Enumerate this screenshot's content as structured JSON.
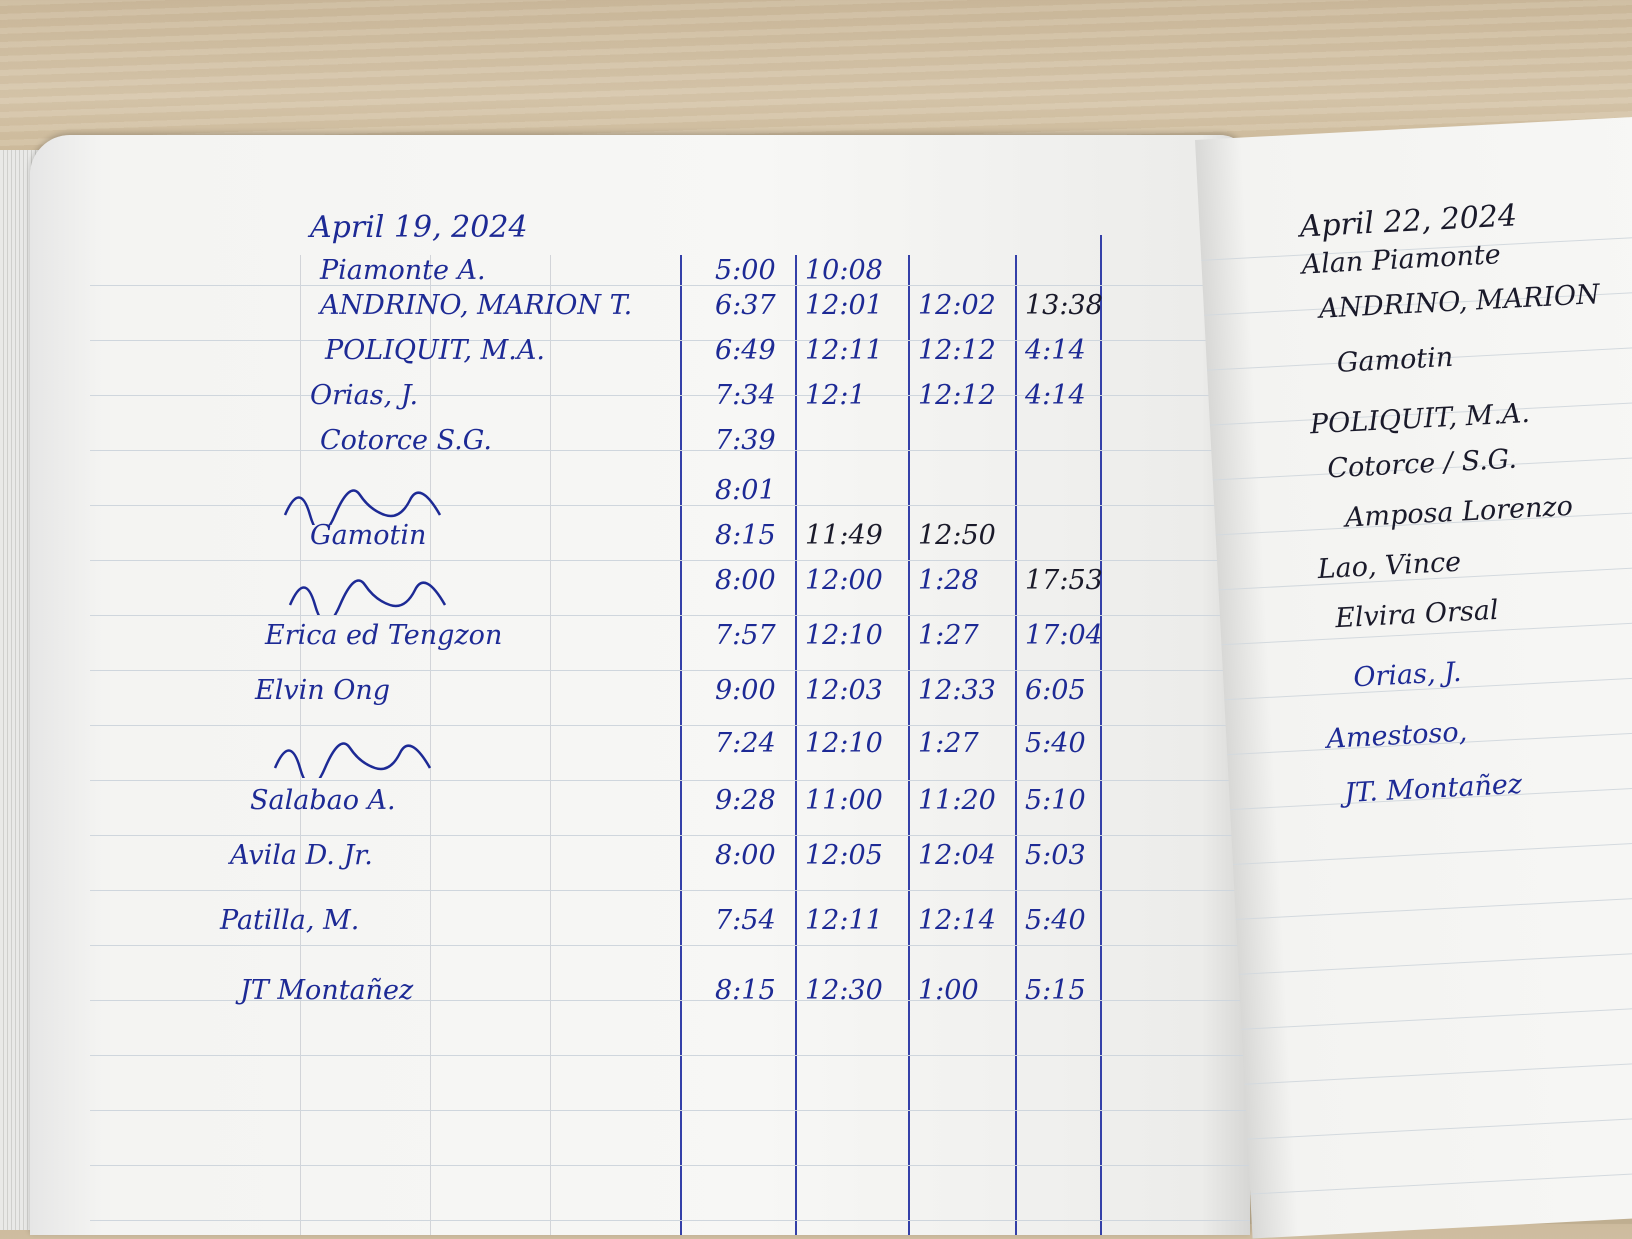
{
  "left_page": {
    "date": "April 19, 2024",
    "rows": [
      {
        "name": "Piamonte A.",
        "times": [
          "5:00",
          "10:08",
          "",
          ""
        ]
      },
      {
        "name": "ANDRINO, MARION T.",
        "times": [
          "6:37",
          "12:01",
          "12:02",
          "13:38"
        ]
      },
      {
        "name": "POLIQUIT, M.A.",
        "times": [
          "6:49",
          "12:11",
          "12:12",
          "4:14"
        ]
      },
      {
        "name": "Orias, J.",
        "times": [
          "7:34",
          "12:1",
          "12:12",
          "4:14"
        ]
      },
      {
        "name": "Cotorce S.G.",
        "times": [
          "7:39",
          "",
          "",
          ""
        ]
      },
      {
        "name": "",
        "times": [
          "8:01",
          "",
          "",
          ""
        ]
      },
      {
        "name": "Gamotin",
        "times": [
          "8:15",
          "11:49",
          "12:50",
          ""
        ]
      },
      {
        "name": "",
        "times": [
          "8:00",
          "12:00",
          "1:28",
          "17:53"
        ]
      },
      {
        "name": "Erica ed Tengzon",
        "times": [
          "7:57",
          "12:10",
          "1:27",
          "17:04"
        ]
      },
      {
        "name": "Elvin Ong",
        "times": [
          "9:00",
          "12:03",
          "12:33",
          "6:05"
        ]
      },
      {
        "name": "",
        "times": [
          "7:24",
          "12:10",
          "1:27",
          "5:40"
        ]
      },
      {
        "name": "Salabao A.",
        "times": [
          "9:28",
          "11:00",
          "11:20",
          "5:10"
        ]
      },
      {
        "name": "Avila D. Jr.",
        "times": [
          "8:00",
          "12:05",
          "12:04",
          "5:03"
        ]
      },
      {
        "name": "Patilla, M.",
        "times": [
          "7:54",
          "12:11",
          "12:14",
          "5:40"
        ]
      },
      {
        "name": "JT Montañez",
        "times": [
          "8:15",
          "12:30",
          "1:00",
          "5:15"
        ]
      }
    ]
  },
  "right_page": {
    "date": "April 22, 2024",
    "names": [
      "Alan Piamonte",
      "ANDRINO, MARION",
      "Gamotin",
      "POLIQUIT, M.A.",
      "Cotorce / S.G.",
      "Amposa Lorenzo",
      "Lao, Vince",
      "Elvira Orsal",
      "Orias, J.",
      "Amestoso,",
      "JT. Montañez"
    ]
  },
  "colors": {
    "ink_blue": "#1d2a95",
    "ink_black": "#1a1a2a",
    "paper": "#f7f7f5",
    "desk": "#cdbb9e"
  }
}
